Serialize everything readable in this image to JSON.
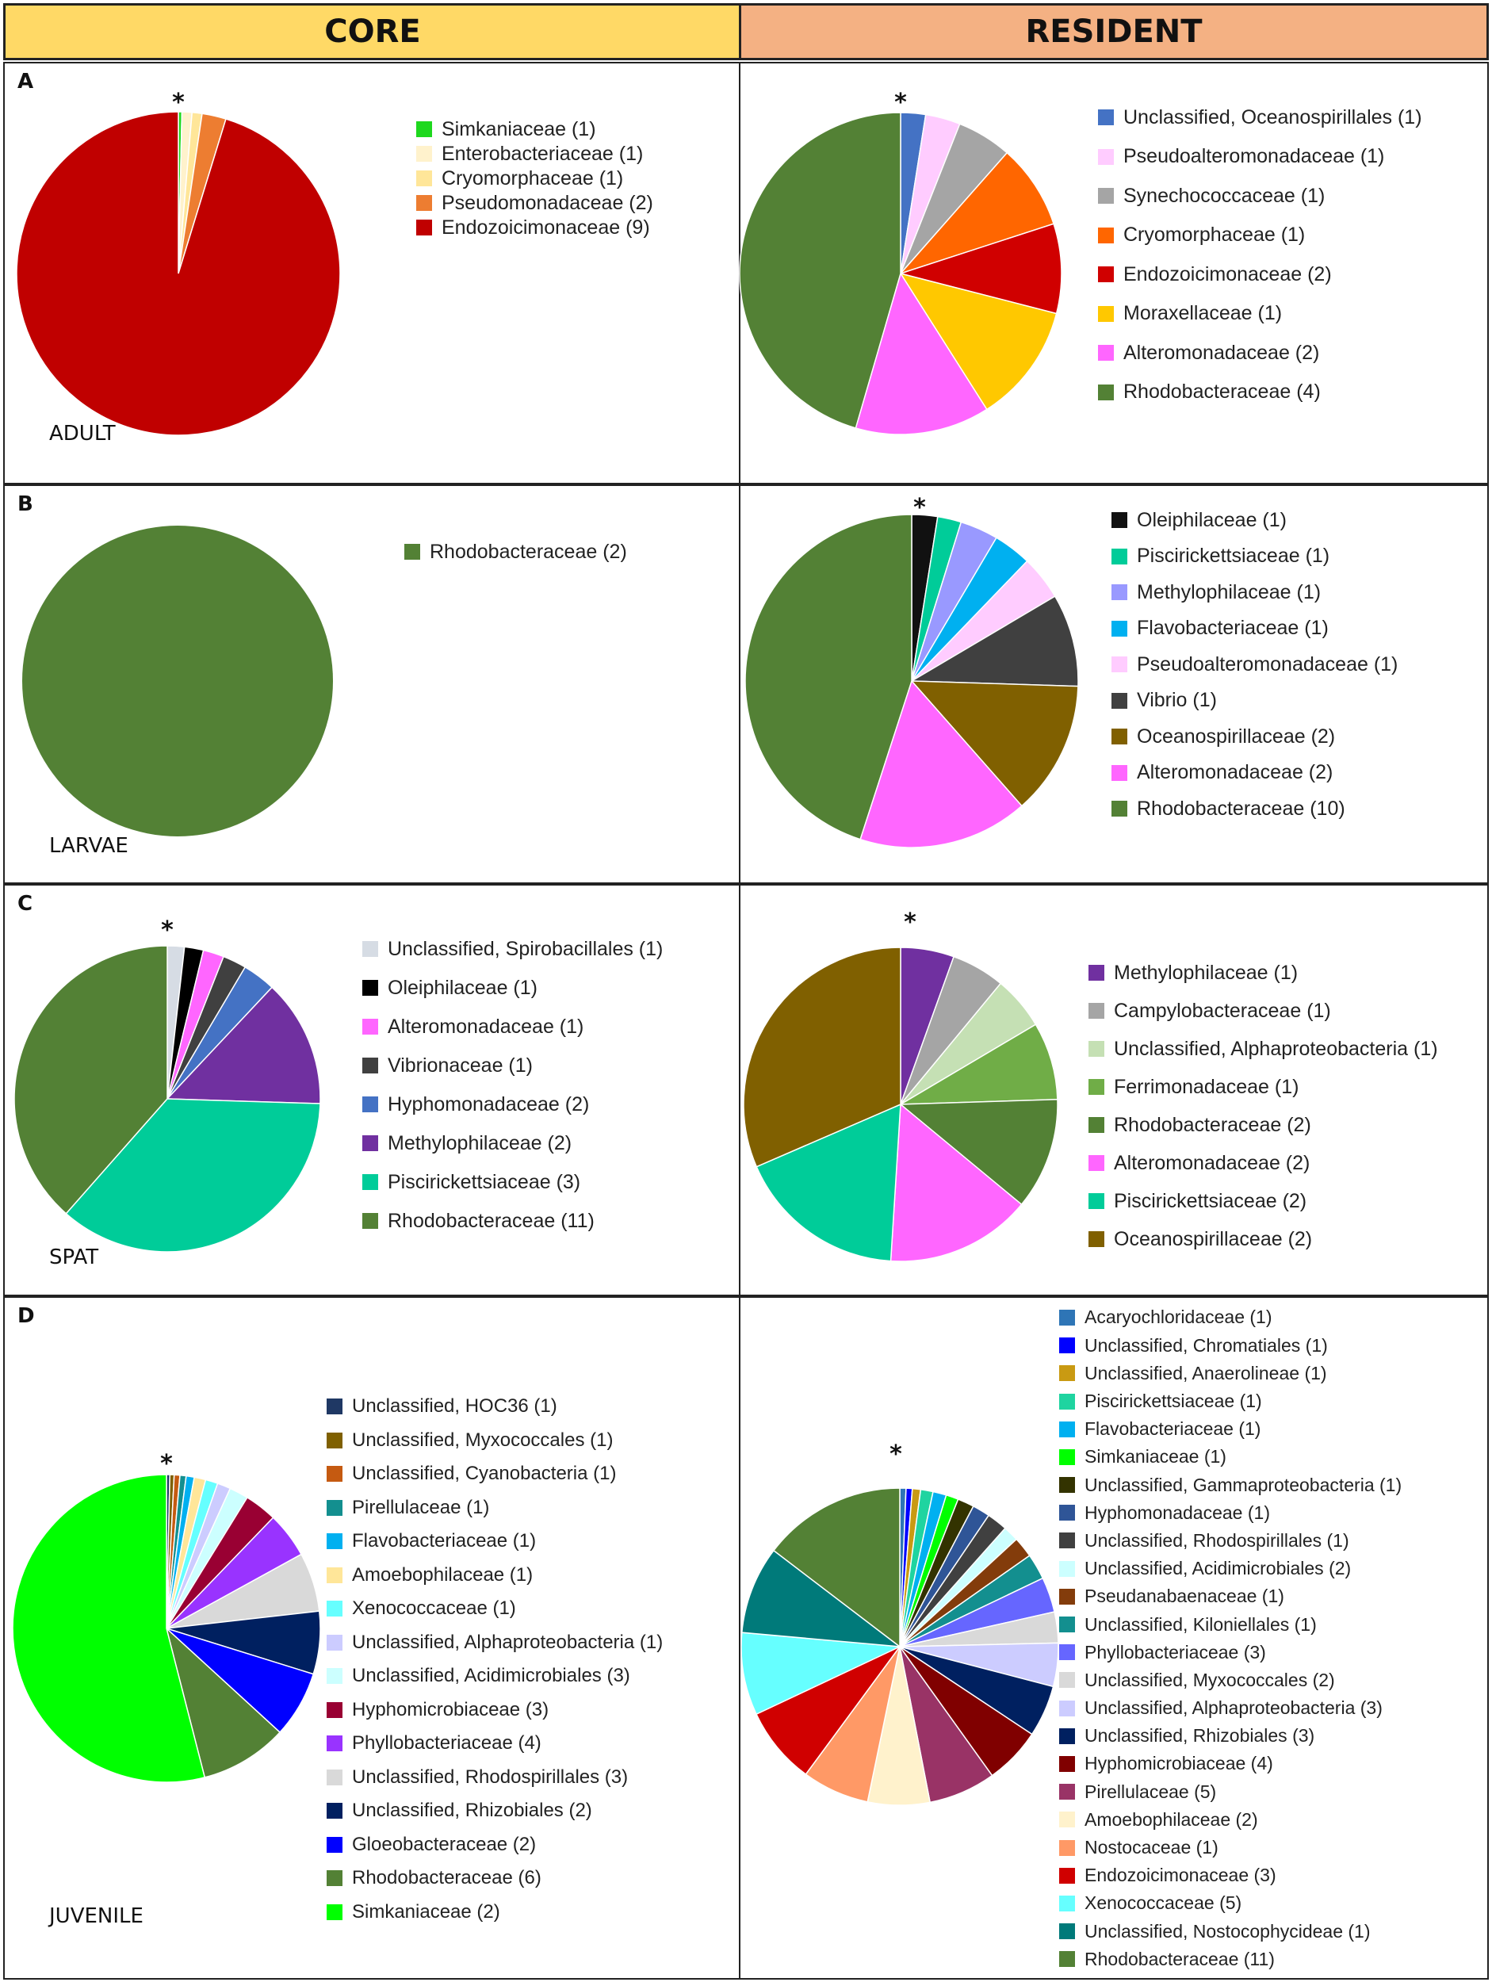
{
  "headers": {
    "core": {
      "label": "CORE",
      "color": "#FFD966"
    },
    "resident": {
      "label": "RESIDENT",
      "color": "#F4B183"
    }
  },
  "asterisk": "*",
  "chart_data": [
    {
      "id": "A-core",
      "panel": "A",
      "stage": "ADULT",
      "group": "CORE",
      "type": "pie",
      "asterisk": true,
      "series": [
        {
          "name": "Simkaniaceae (1)",
          "value": 1,
          "color": "#1ED81E"
        },
        {
          "name": "Enterobacteriaceae (1)",
          "value": 1,
          "color": "#FFF2CC"
        },
        {
          "name": "Cryomorphaceae (1)",
          "value": 1,
          "color": "#FFE699"
        },
        {
          "name": "Pseudomonadaceae (2)",
          "value": 2,
          "color": "#ED7D31"
        },
        {
          "name": "Endozoicimonaceae (9)",
          "value": 9,
          "color": "#C00000"
        }
      ],
      "slices": [
        0.35,
        1.0,
        1.0,
        2.4,
        95.25
      ]
    },
    {
      "id": "A-res",
      "panel": "A",
      "stage": "",
      "group": "RESIDENT",
      "type": "pie",
      "asterisk": true,
      "series": [
        {
          "name": "Unclassified, Oceanospirillales (1)",
          "value": 1,
          "color": "#4472C4"
        },
        {
          "name": "Pseudoalteromonadaceae (1)",
          "value": 1,
          "color": "#FFCCFF"
        },
        {
          "name": "Synechococcaceae (1)",
          "value": 1,
          "color": "#A5A5A5"
        },
        {
          "name": "Cryomorphaceae (1)",
          "value": 1,
          "color": "#FF6600"
        },
        {
          "name": "Endozoicimonaceae (2)",
          "value": 2,
          "color": "#D00000"
        },
        {
          "name": "Moraxellaceae (1)",
          "value": 1,
          "color": "#FFC800"
        },
        {
          "name": "Alteromonadaceae (2)",
          "value": 2,
          "color": "#FF66FF"
        },
        {
          "name": "Rhodobacteraceae (4)",
          "value": 4,
          "color": "#538135"
        }
      ],
      "slices": [
        2.5,
        3.5,
        5.5,
        8.5,
        9.0,
        12.0,
        13.5,
        45.5
      ]
    },
    {
      "id": "B-core",
      "panel": "B",
      "stage": "LARVAE",
      "group": "CORE",
      "type": "pie",
      "asterisk": false,
      "series": [
        {
          "name": "Rhodobacteraceae (2)",
          "value": 2,
          "color": "#538135"
        }
      ],
      "slices": [
        100
      ]
    },
    {
      "id": "B-res",
      "panel": "B",
      "stage": "",
      "group": "RESIDENT",
      "type": "pie",
      "asterisk": true,
      "series": [
        {
          "name": "Oleiphilaceae (1)",
          "value": 1,
          "color": "#111111"
        },
        {
          "name": "Piscirickettsiaceae (1)",
          "value": 1,
          "color": "#00CC99"
        },
        {
          "name": "Methylophilaceae (1)",
          "value": 1,
          "color": "#9999FF"
        },
        {
          "name": "Flavobacteriaceae (1)",
          "value": 1,
          "color": "#00B0F0"
        },
        {
          "name": "Pseudoalteromonadaceae (1)",
          "value": 1,
          "color": "#FFCCFF"
        },
        {
          "name": "Vibrio (1)",
          "value": 1,
          "color": "#404040"
        },
        {
          "name": "Oceanospirillaceae (2)",
          "value": 2,
          "color": "#806000"
        },
        {
          "name": "Alteromonadaceae (2)",
          "value": 2,
          "color": "#FF66FF"
        },
        {
          "name": "Rhodobacteraceae (10)",
          "value": 10,
          "color": "#538135"
        }
      ],
      "slices": [
        2.5,
        2.3,
        3.7,
        3.7,
        4.3,
        9.0,
        13.0,
        16.5,
        45.0
      ]
    },
    {
      "id": "C-core",
      "panel": "C",
      "stage": "SPAT",
      "group": "CORE",
      "type": "pie",
      "asterisk": true,
      "series": [
        {
          "name": "Unclassified, Spirobacillales (1)",
          "value": 1,
          "color": "#D6DCE4"
        },
        {
          "name": "Oleiphilaceae (1)",
          "value": 1,
          "color": "#000000"
        },
        {
          "name": "Alteromonadaceae (1)",
          "value": 1,
          "color": "#FF66FF"
        },
        {
          "name": "Vibrionaceae (1)",
          "value": 1,
          "color": "#404040"
        },
        {
          "name": "Hyphomonadaceae (2)",
          "value": 2,
          "color": "#4472C4"
        },
        {
          "name": "Methylophilaceae (2)",
          "value": 2,
          "color": "#7030A0"
        },
        {
          "name": "Piscirickettsiaceae (3)",
          "value": 3,
          "color": "#00CC99"
        },
        {
          "name": "Rhodobacteraceae (11)",
          "value": 11,
          "color": "#538135"
        }
      ],
      "slices": [
        1.8,
        2.0,
        2.2,
        2.5,
        3.5,
        13.5,
        36.0,
        38.5
      ]
    },
    {
      "id": "C-res",
      "panel": "C",
      "stage": "",
      "group": "RESIDENT",
      "type": "pie",
      "asterisk": true,
      "series": [
        {
          "name": "Methylophilaceae (1)",
          "value": 1,
          "color": "#7030A0"
        },
        {
          "name": "Campylobacteraceae (1)",
          "value": 1,
          "color": "#A5A5A5"
        },
        {
          "name": "Unclassified, Alphaproteobacteria (1)",
          "value": 1,
          "color": "#C5E0B4"
        },
        {
          "name": "Ferrimonadaceae (1)",
          "value": 1,
          "color": "#70AD47"
        },
        {
          "name": "Rhodobacteraceae (2)",
          "value": 2,
          "color": "#538135"
        },
        {
          "name": "Alteromonadaceae (2)",
          "value": 2,
          "color": "#FF66FF"
        },
        {
          "name": "Piscirickettsiaceae (2)",
          "value": 2,
          "color": "#00CC99"
        },
        {
          "name": "Oceanospirillaceae (2)",
          "value": 2,
          "color": "#806000"
        }
      ],
      "slices": [
        5.5,
        5.5,
        5.5,
        8.0,
        11.5,
        15.0,
        17.5,
        31.5
      ]
    },
    {
      "id": "D-core",
      "panel": "D",
      "stage": "JUVENILE",
      "group": "CORE",
      "type": "pie",
      "asterisk": true,
      "series": [
        {
          "name": "Unclassified, HOC36 (1)",
          "value": 1,
          "color": "#1F3864"
        },
        {
          "name": "Unclassified, Myxococcales (1)",
          "value": 1,
          "color": "#7F6000"
        },
        {
          "name": "Unclassified, Cyanobacteria (1)",
          "value": 1,
          "color": "#C55A11"
        },
        {
          "name": "Pirellulaceae (1)",
          "value": 1,
          "color": "#138F8F"
        },
        {
          "name": "Flavobacteriaceae (1)",
          "value": 1,
          "color": "#00B0F0"
        },
        {
          "name": "Amoebophilaceae (1)",
          "value": 1,
          "color": "#FFE699"
        },
        {
          "name": "Xenococcaceae (1)",
          "value": 1,
          "color": "#66FFFF"
        },
        {
          "name": "Unclassified, Alphaproteobacteria (1)",
          "value": 1,
          "color": "#CCCCFF"
        },
        {
          "name": "Unclassified, Acidimicrobiales (3)",
          "value": 3,
          "color": "#CCFFFF"
        },
        {
          "name": "Hyphomicrobiaceae (3)",
          "value": 3,
          "color": "#990033"
        },
        {
          "name": "Phyllobacteriaceae (4)",
          "value": 4,
          "color": "#9933FF"
        },
        {
          "name": "Unclassified, Rhodospirillales (3)",
          "value": 3,
          "color": "#D9D9D9"
        },
        {
          "name": "Unclassified, Rhizobiales (2)",
          "value": 2,
          "color": "#002060"
        },
        {
          "name": "Gloeobacteraceae (2)",
          "value": 2,
          "color": "#0000FF"
        },
        {
          "name": "Rhodobacteraceae (6)",
          "value": 6,
          "color": "#538135"
        },
        {
          "name": "Simkaniaceae (2)",
          "value": 2,
          "color": "#00FF00"
        }
      ],
      "slices": [
        0.35,
        0.45,
        0.6,
        0.65,
        0.85,
        1.2,
        1.3,
        1.4,
        2.0,
        3.4,
        4.8,
        6.2,
        6.6,
        7.0,
        9.2,
        54.0
      ]
    },
    {
      "id": "D-res",
      "panel": "D",
      "stage": "",
      "group": "RESIDENT",
      "type": "pie",
      "asterisk": true,
      "series": [
        {
          "name": "Acaryochloridaceae (1)",
          "value": 1,
          "color": "#2E75B6"
        },
        {
          "name": "Unclassified, Chromatiales (1)",
          "value": 1,
          "color": "#0000FF"
        },
        {
          "name": "Unclassified, Anaerolineae (1)",
          "value": 1,
          "color": "#C99A12"
        },
        {
          "name": "Piscirickettsiaceae (1)",
          "value": 1,
          "color": "#1FD4A0"
        },
        {
          "name": "Flavobacteriaceae (1)",
          "value": 1,
          "color": "#00B0F0"
        },
        {
          "name": "Simkaniaceae (1)",
          "value": 1,
          "color": "#00FF00"
        },
        {
          "name": "Unclassified, Gammaproteobacteria (1)",
          "value": 1,
          "color": "#333300"
        },
        {
          "name": "Hyphomonadaceae (1)",
          "value": 1,
          "color": "#2F5597"
        },
        {
          "name": "Unclassified, Rhodospirillales (1)",
          "value": 1,
          "color": "#404040"
        },
        {
          "name": "Unclassified, Acidimicrobiales (2)",
          "value": 2,
          "color": "#CCFFFF"
        },
        {
          "name": "Pseudanabaenaceae (1)",
          "value": 1,
          "color": "#833C0B"
        },
        {
          "name": "Unclassified, Kiloniellales (1)",
          "value": 1,
          "color": "#138F8F"
        },
        {
          "name": "Phyllobacteriaceae (3)",
          "value": 3,
          "color": "#6666FF"
        },
        {
          "name": "Unclassified, Myxococcales (2)",
          "value": 2,
          "color": "#D9D9D9"
        },
        {
          "name": "Unclassified, Alphaproteobacteria (3)",
          "value": 3,
          "color": "#CCCCFF"
        },
        {
          "name": "Unclassified, Rhizobiales (3)",
          "value": 3,
          "color": "#002060"
        },
        {
          "name": "Hyphomicrobiaceae (4)",
          "value": 4,
          "color": "#800000"
        },
        {
          "name": "Pirellulaceae (5)",
          "value": 5,
          "color": "#993366"
        },
        {
          "name": "Amoebophilaceae (2)",
          "value": 2,
          "color": "#FFF2CC"
        },
        {
          "name": "Nostocaceae (1)",
          "value": 1,
          "color": "#FF9966"
        },
        {
          "name": "Endozoicimonaceae (3)",
          "value": 3,
          "color": "#D00000"
        },
        {
          "name": "Xenococcaceae (5)",
          "value": 5,
          "color": "#66FFFF"
        },
        {
          "name": "Unclassified, Nostocophycideae (1)",
          "value": 1,
          "color": "#007A7A"
        },
        {
          "name": "Rhodobacteraceae (11)",
          "value": 11,
          "color": "#538135"
        }
      ],
      "slices": [
        0.6,
        0.6,
        0.8,
        1.2,
        1.3,
        1.2,
        1.6,
        1.7,
        2.0,
        1.5,
        2.0,
        2.5,
        3.4,
        3.0,
        4.2,
        5.0,
        5.5,
        6.5,
        6.0,
        6.5,
        7.5,
        8.0,
        8.5,
        13.9
      ]
    }
  ]
}
